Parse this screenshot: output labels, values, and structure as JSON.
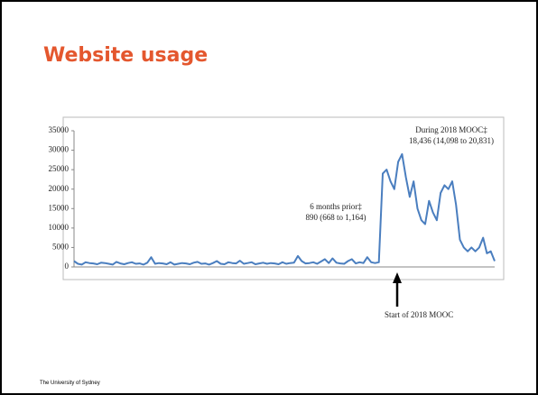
{
  "slide": {
    "title": "Website usage",
    "footer": "The University of Sydney"
  },
  "chart_data": {
    "type": "line",
    "categories": [
      null,
      null,
      null,
      null,
      null,
      null,
      null,
      null,
      null,
      null,
      null,
      null,
      null,
      null,
      null,
      null,
      null,
      null,
      null,
      null,
      null,
      null,
      null,
      null,
      null,
      null,
      null,
      null,
      null,
      null,
      null,
      null,
      null,
      null,
      null,
      null,
      null,
      null,
      null,
      null,
      null,
      null,
      null,
      null,
      null,
      null,
      null,
      null,
      null,
      null,
      null,
      null,
      null,
      null,
      null,
      null,
      null,
      null,
      null,
      null,
      null,
      null,
      null,
      null,
      null,
      null,
      null,
      null,
      null,
      null,
      null,
      null,
      null,
      null,
      null,
      null,
      null,
      null,
      null,
      null,
      null,
      null,
      null,
      null,
      null,
      null,
      null,
      null,
      null,
      null,
      null,
      null,
      null,
      null,
      null,
      null,
      null,
      null,
      null,
      null,
      null,
      null,
      null,
      null,
      null,
      null,
      null,
      null,
      null,
      null
    ],
    "values": [
      1500,
      800,
      600,
      1200,
      1000,
      900,
      700,
      1100,
      1000,
      800,
      600,
      1300,
      900,
      700,
      1000,
      1200,
      800,
      900,
      600,
      1100,
      2500,
      800,
      1000,
      900,
      700,
      1200,
      600,
      800,
      1000,
      900,
      700,
      1100,
      1300,
      800,
      900,
      600,
      1000,
      1500,
      800,
      700,
      1200,
      1000,
      900,
      1600,
      800,
      1000,
      1200,
      700,
      900,
      1100,
      800,
      1000,
      900,
      700,
      1200,
      800,
      1000,
      1100,
      2800,
      1500,
      900,
      1000,
      1200,
      800,
      1400,
      2000,
      1000,
      2200,
      1100,
      900,
      800,
      1500,
      2000,
      900,
      1200,
      1000,
      2500,
      1200,
      1000,
      1200,
      24000,
      25000,
      22000,
      20000,
      27000,
      29000,
      23000,
      18000,
      22000,
      15000,
      12000,
      11000,
      17000,
      14000,
      12000,
      19000,
      21000,
      20000,
      22000,
      16000,
      7000,
      5000,
      4000,
      5000,
      4000,
      5000,
      7500,
      3500,
      4000,
      1500
    ],
    "color": "#4a7ebf",
    "ylim": [
      0,
      35000
    ],
    "yticks": [
      0,
      5000,
      10000,
      15000,
      20000,
      25000,
      30000,
      35000
    ],
    "annotations": [
      "During 2018 MOOC‡",
      "18,436 (14,098 to 20,831)",
      "6 months prior‡",
      "890 (668 to 1,164)",
      "Start of 2018 MOOC"
    ]
  }
}
